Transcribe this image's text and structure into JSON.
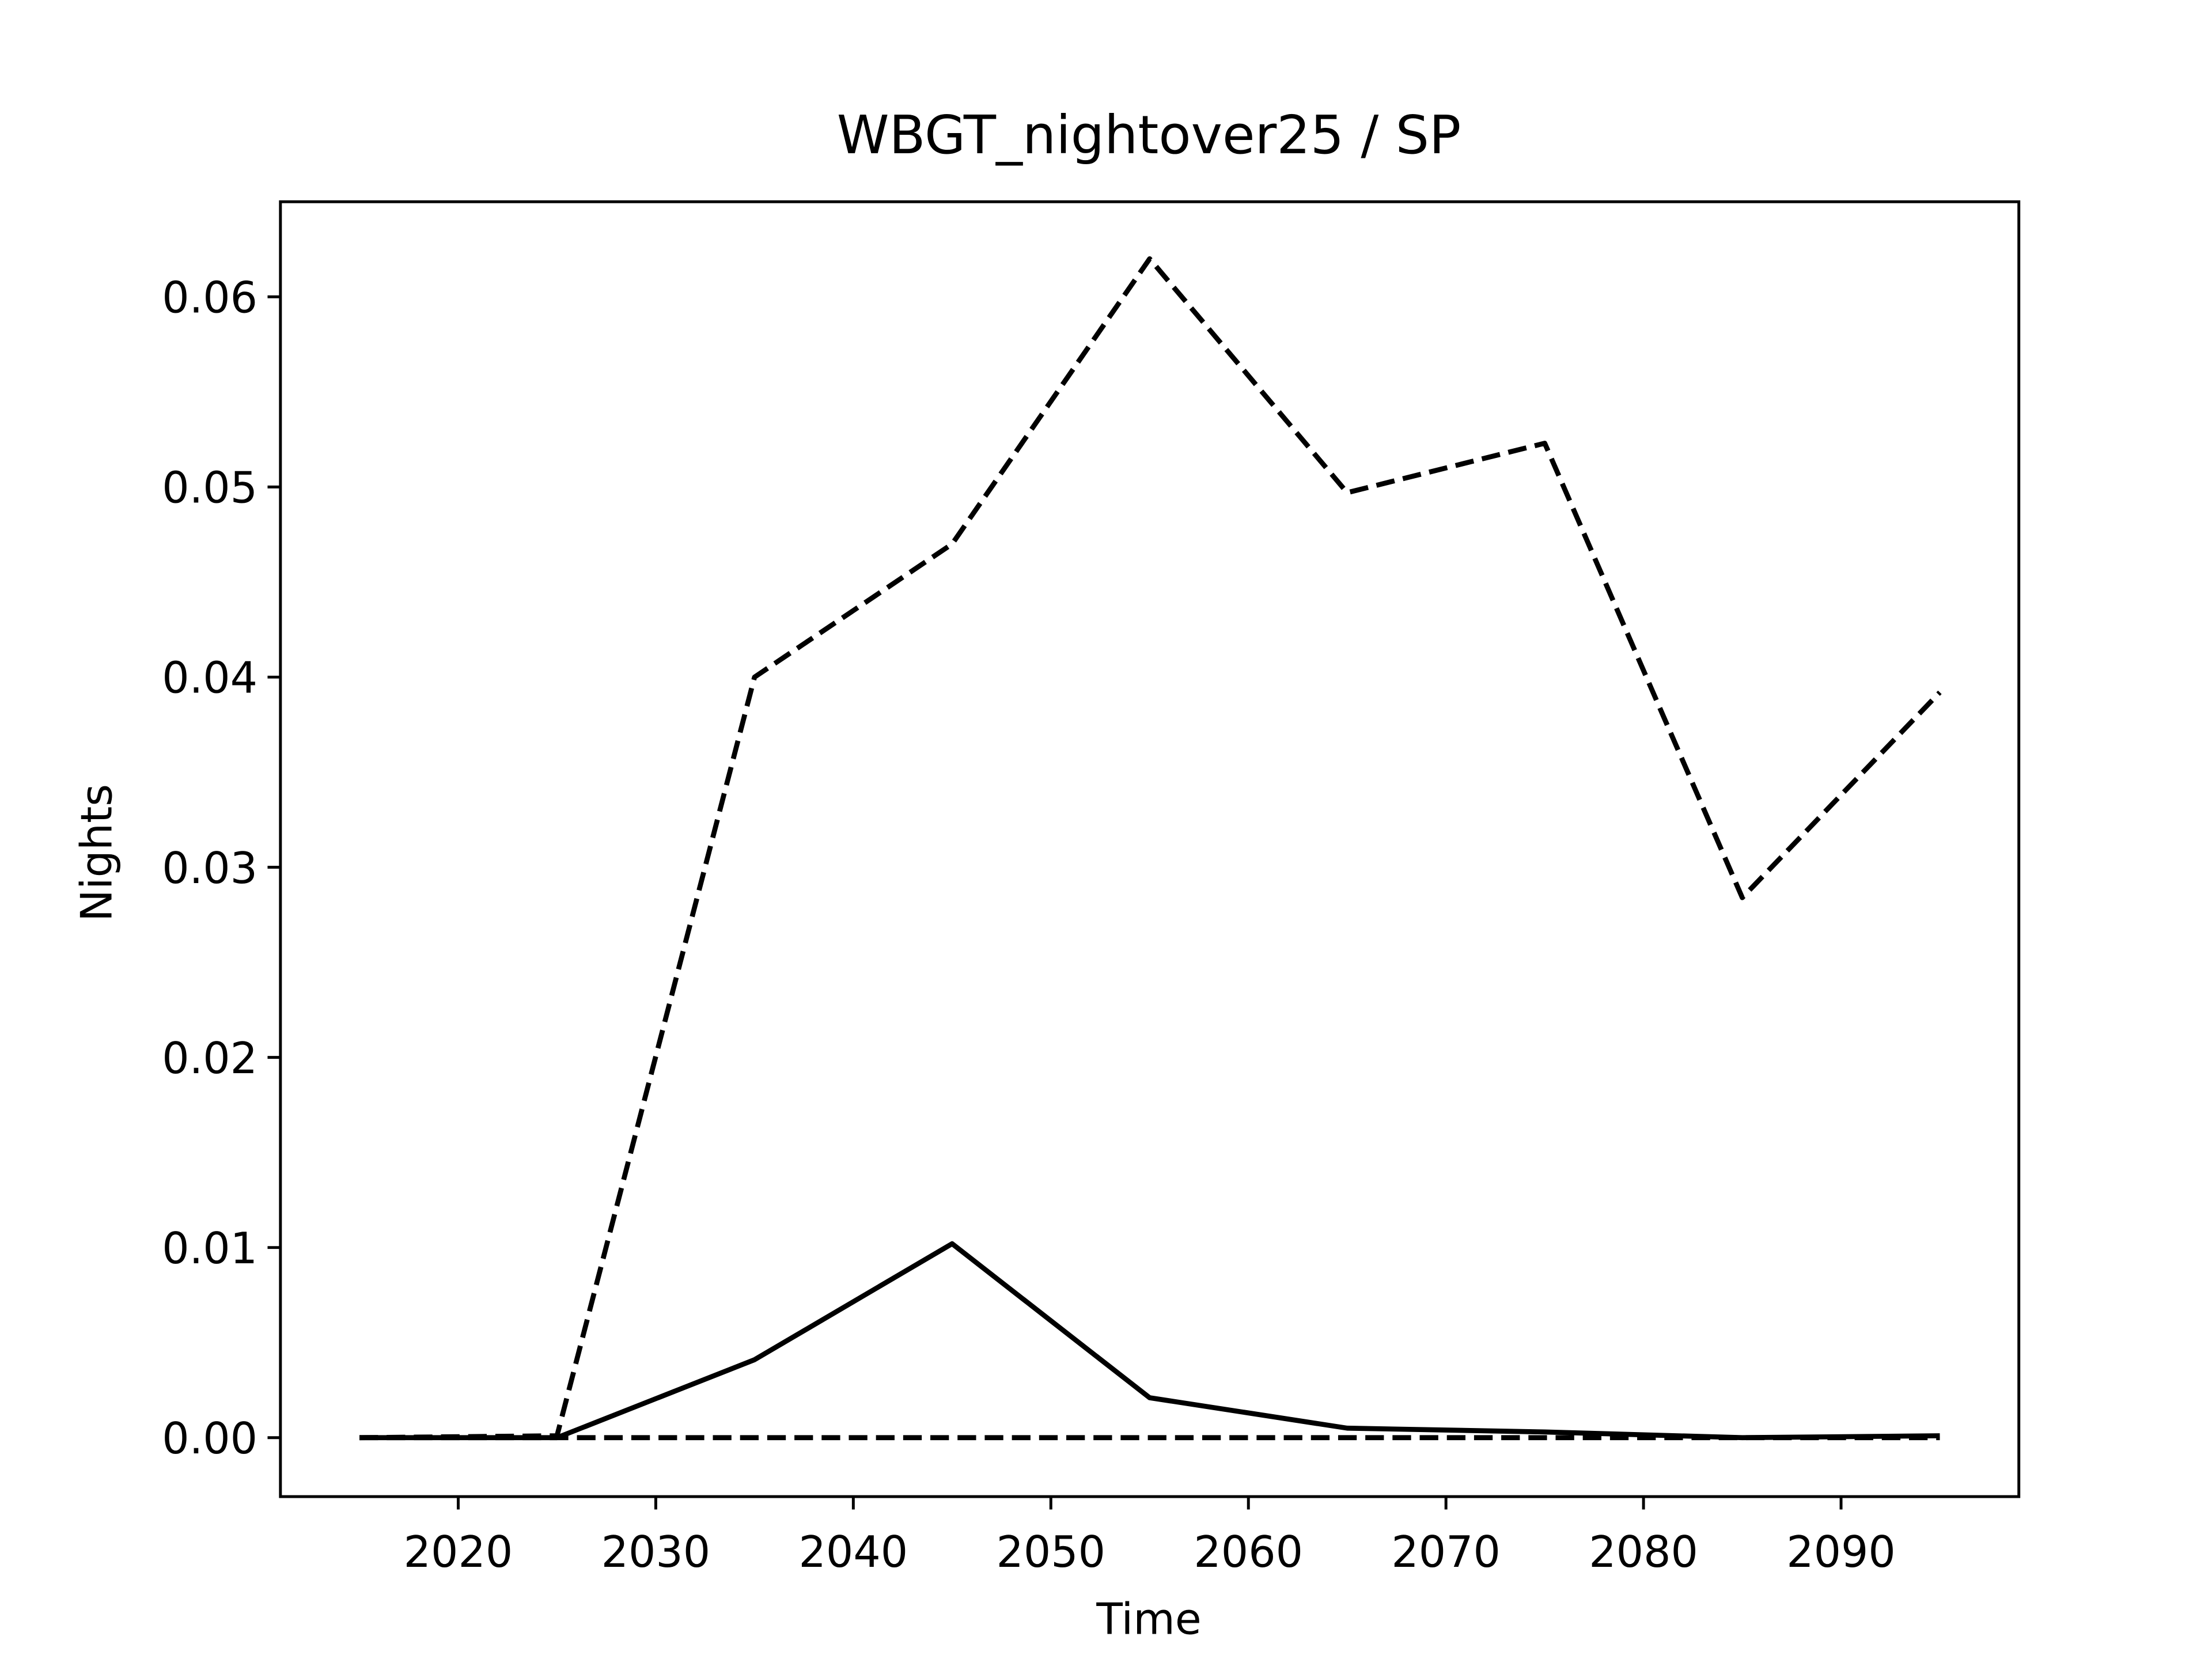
{
  "chart_data": {
    "type": "line",
    "title": "WBGT_nightover25 / SP",
    "xlabel": "Time",
    "ylabel": "Nights",
    "x": [
      2015,
      2025,
      2035,
      2045,
      2055,
      2065,
      2075,
      2085,
      2095
    ],
    "series": [
      {
        "color": "#000000",
        "dash": true,
        "values": [
          0,
          0.0001,
          0.04,
          0.047,
          0.062,
          0.0497,
          0.0523,
          0.0284,
          0.0392
        ]
      },
      {
        "color": "#000000",
        "dash": false,
        "values": [
          0,
          0,
          0.0041,
          0.0102,
          0.0021,
          0.0005,
          0.0003,
          0,
          0.0001
        ]
      },
      {
        "color": "#000000",
        "dash": true,
        "values": [
          0,
          0,
          0,
          0,
          0,
          0,
          0,
          0,
          0
        ]
      }
    ],
    "xlim": [
      2011,
      2099
    ],
    "ylim": [
      -0.0031,
      0.065
    ],
    "xticks": [
      2020,
      2030,
      2040,
      2050,
      2060,
      2070,
      2080,
      2090
    ],
    "yticks": [
      {
        "value": 0,
        "label": "0.00"
      },
      {
        "value": 0.01,
        "label": "0.01"
      },
      {
        "value": 0.02,
        "label": "0.02"
      },
      {
        "value": 0.03,
        "label": "0.03"
      },
      {
        "value": 0.04,
        "label": "0.04"
      },
      {
        "value": 0.05,
        "label": "0.05"
      },
      {
        "value": 0.06,
        "label": "0.06"
      }
    ],
    "grid": false
  }
}
